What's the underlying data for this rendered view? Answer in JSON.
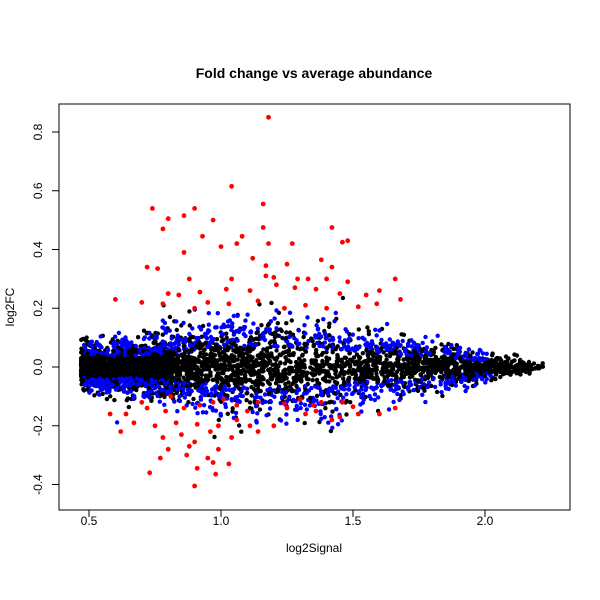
{
  "chart_data": {
    "type": "scatter",
    "title": "Fold change vs average abundance",
    "xlabel": "log2Signal",
    "ylabel": "log2FC",
    "xlim": [
      0.43,
      2.27
    ],
    "ylim": [
      -0.45,
      0.89
    ],
    "x_ticks": [
      "0.5",
      "1.0",
      "1.5",
      "2.0"
    ],
    "y_ticks": [
      "-0.4",
      "-0.2",
      "0.0",
      "0.2",
      "0.4",
      "0.6",
      "0.8"
    ],
    "grid": false,
    "legend": "none",
    "colors": {
      "nonsignificant": "#000000",
      "moderate": "#0000ff",
      "significant": "#ff0000"
    },
    "series": [
      {
        "color": "#ff0000",
        "points": [
          [
            1.18,
            0.85
          ],
          [
            1.04,
            0.615
          ],
          [
            1.16,
            0.555
          ],
          [
            0.74,
            0.54
          ],
          [
            0.9,
            0.54
          ],
          [
            0.86,
            0.515
          ],
          [
            0.8,
            0.505
          ],
          [
            0.97,
            0.5
          ],
          [
            0.78,
            0.47
          ],
          [
            1.16,
            0.475
          ],
          [
            1.42,
            0.475
          ],
          [
            1.08,
            0.445
          ],
          [
            0.93,
            0.445
          ],
          [
            1.46,
            0.425
          ],
          [
            1.48,
            0.43
          ],
          [
            1.27,
            0.42
          ],
          [
            1.18,
            0.42
          ],
          [
            1.06,
            0.42
          ],
          [
            1.0,
            0.41
          ],
          [
            0.86,
            0.39
          ],
          [
            1.12,
            0.37
          ],
          [
            1.38,
            0.365
          ],
          [
            1.25,
            0.35
          ],
          [
            1.42,
            0.34
          ],
          [
            1.17,
            0.345
          ],
          [
            0.72,
            0.34
          ],
          [
            0.76,
            0.335
          ],
          [
            0.88,
            0.3
          ],
          [
            1.04,
            0.3
          ],
          [
            1.17,
            0.31
          ],
          [
            1.2,
            0.305
          ],
          [
            1.29,
            0.3
          ],
          [
            1.33,
            0.3
          ],
          [
            1.4,
            0.3
          ],
          [
            1.48,
            0.29
          ],
          [
            1.66,
            0.3
          ],
          [
            0.8,
            0.25
          ],
          [
            0.84,
            0.245
          ],
          [
            0.92,
            0.255
          ],
          [
            1.02,
            0.265
          ],
          [
            1.11,
            0.26
          ],
          [
            1.21,
            0.28
          ],
          [
            1.28,
            0.27
          ],
          [
            1.36,
            0.265
          ],
          [
            1.45,
            0.25
          ],
          [
            1.55,
            0.245
          ],
          [
            1.6,
            0.26
          ],
          [
            0.6,
            0.23
          ],
          [
            0.7,
            0.22
          ],
          [
            0.78,
            0.215
          ],
          [
            0.95,
            0.22
          ],
          [
            1.03,
            0.215
          ],
          [
            1.14,
            0.225
          ],
          [
            1.32,
            0.21
          ],
          [
            1.4,
            0.2
          ],
          [
            1.52,
            0.205
          ],
          [
            1.59,
            0.215
          ],
          [
            1.68,
            0.23
          ],
          [
            1.24,
            0.2
          ],
          [
            0.9,
            0.2
          ],
          [
            0.97,
            -0.12
          ],
          [
            1.01,
            -0.11
          ],
          [
            1.06,
            -0.13
          ],
          [
            1.14,
            -0.12
          ],
          [
            1.24,
            -0.125
          ],
          [
            1.3,
            -0.11
          ],
          [
            1.38,
            -0.12
          ],
          [
            1.46,
            -0.12
          ],
          [
            0.92,
            -0.13
          ],
          [
            0.86,
            -0.14
          ],
          [
            0.79,
            -0.15
          ],
          [
            0.72,
            -0.14
          ],
          [
            0.64,
            -0.16
          ],
          [
            0.58,
            -0.16
          ],
          [
            0.67,
            -0.19
          ],
          [
            0.75,
            -0.2
          ],
          [
            0.83,
            -0.19
          ],
          [
            0.91,
            -0.195
          ],
          [
            0.99,
            -0.2
          ],
          [
            1.06,
            -0.18
          ],
          [
            1.11,
            -0.2
          ],
          [
            1.2,
            -0.2
          ],
          [
            1.32,
            -0.16
          ],
          [
            1.42,
            -0.18
          ],
          [
            1.52,
            -0.16
          ],
          [
            1.6,
            -0.16
          ],
          [
            1.66,
            -0.14
          ],
          [
            0.62,
            -0.22
          ],
          [
            0.78,
            -0.24
          ],
          [
            0.85,
            -0.23
          ],
          [
            0.9,
            -0.255
          ],
          [
            0.96,
            -0.22
          ],
          [
            1.04,
            -0.24
          ],
          [
            1.14,
            -0.22
          ],
          [
            0.8,
            -0.28
          ],
          [
            0.88,
            -0.27
          ],
          [
            0.99,
            -0.28
          ],
          [
            0.77,
            -0.31
          ],
          [
            0.87,
            -0.3
          ],
          [
            0.95,
            -0.31
          ],
          [
            0.73,
            -0.36
          ],
          [
            0.91,
            -0.345
          ],
          [
            0.97,
            -0.325
          ],
          [
            1.03,
            -0.33
          ],
          [
            0.98,
            -0.365
          ],
          [
            0.9,
            -0.405
          ],
          [
            1.25,
            -0.14
          ],
          [
            1.35,
            -0.13
          ],
          [
            1.1,
            -0.15
          ],
          [
            0.81,
            -0.1
          ],
          [
            0.7,
            -0.12
          ],
          [
            1.5,
            -0.135
          ],
          [
            1.36,
            -0.15
          ],
          [
            1.45,
            -0.17
          ]
        ]
      }
    ]
  }
}
